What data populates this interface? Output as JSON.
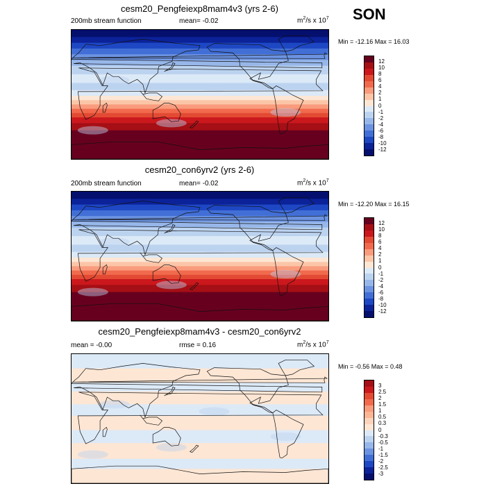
{
  "season": "SON",
  "panels": [
    {
      "title": "cesm20_Pengfeiexp8mam4v3 (yrs 2-6)",
      "left_label": "200mb stream function",
      "center_label": "mean=  -0.02",
      "units": "m",
      "units_rest": "/s x 10",
      "units_sup2": "2",
      "units_sup7": "7",
      "minmax": "Min = -12.16 Max =  16.03",
      "levels": [
        "12",
        "10",
        "8",
        "6",
        "4",
        "2",
        "1",
        "0",
        "-1",
        "-2",
        "-4",
        "-6",
        "-8",
        "-10",
        "-12"
      ],
      "colors": [
        "#67001f",
        "#a50f15",
        "#cb181d",
        "#e34a33",
        "#f16a4d",
        "#f99b7d",
        "#fcc5a8",
        "#fde6d4",
        "#dce9f7",
        "#bcd3f0",
        "#97b7ea",
        "#6c93e1",
        "#426fd6",
        "#1e47c4",
        "#0b2299",
        "#050f6e"
      ],
      "bands": [
        {
          "lat": 90,
          "color": "#050f6e"
        },
        {
          "lat": 80,
          "color": "#0b2299"
        },
        {
          "lat": 72,
          "color": "#1e47c4"
        },
        {
          "lat": 64,
          "color": "#426fd6"
        },
        {
          "lat": 56,
          "color": "#6c93e1"
        },
        {
          "lat": 48,
          "color": "#97b7ea"
        },
        {
          "lat": 40,
          "color": "#bcd3f0"
        },
        {
          "lat": 28,
          "color": "#dce9f7"
        },
        {
          "lat": 16,
          "color": "#bcd3f0"
        },
        {
          "lat": 6,
          "color": "#dce9f7"
        },
        {
          "lat": -2,
          "color": "#fde6d4"
        },
        {
          "lat": -8,
          "color": "#fcc5a8"
        },
        {
          "lat": -14,
          "color": "#f99b7d"
        },
        {
          "lat": -20,
          "color": "#f16a4d"
        },
        {
          "lat": -26,
          "color": "#e34a33"
        },
        {
          "lat": -32,
          "color": "#cb181d"
        },
        {
          "lat": -40,
          "color": "#a50f15"
        },
        {
          "lat": -50,
          "color": "#67001f"
        }
      ]
    },
    {
      "title": "cesm20_con6yrv2 (yrs 2-6)",
      "left_label": "200mb stream function",
      "center_label": "mean=  -0.02",
      "units": "m",
      "units_rest": "/s x 10",
      "units_sup2": "2",
      "units_sup7": "7",
      "minmax": "Min = -12.20 Max =  16.15",
      "levels": [
        "12",
        "10",
        "8",
        "6",
        "4",
        "2",
        "1",
        "0",
        "-1",
        "-2",
        "-4",
        "-6",
        "-8",
        "-10",
        "-12"
      ],
      "colors": [
        "#67001f",
        "#a50f15",
        "#cb181d",
        "#e34a33",
        "#f16a4d",
        "#f99b7d",
        "#fcc5a8",
        "#fde6d4",
        "#dce9f7",
        "#bcd3f0",
        "#97b7ea",
        "#6c93e1",
        "#426fd6",
        "#1e47c4",
        "#0b2299",
        "#050f6e"
      ],
      "bands": [
        {
          "lat": 90,
          "color": "#050f6e"
        },
        {
          "lat": 80,
          "color": "#0b2299"
        },
        {
          "lat": 72,
          "color": "#1e47c4"
        },
        {
          "lat": 64,
          "color": "#426fd6"
        },
        {
          "lat": 56,
          "color": "#6c93e1"
        },
        {
          "lat": 48,
          "color": "#97b7ea"
        },
        {
          "lat": 40,
          "color": "#bcd3f0"
        },
        {
          "lat": 28,
          "color": "#dce9f7"
        },
        {
          "lat": 16,
          "color": "#bcd3f0"
        },
        {
          "lat": 6,
          "color": "#dce9f7"
        },
        {
          "lat": -2,
          "color": "#fde6d4"
        },
        {
          "lat": -8,
          "color": "#fcc5a8"
        },
        {
          "lat": -14,
          "color": "#f99b7d"
        },
        {
          "lat": -20,
          "color": "#f16a4d"
        },
        {
          "lat": -26,
          "color": "#e34a33"
        },
        {
          "lat": -32,
          "color": "#cb181d"
        },
        {
          "lat": -40,
          "color": "#a50f15"
        },
        {
          "lat": -50,
          "color": "#67001f"
        }
      ]
    },
    {
      "title": "cesm20_Pengfeiexp8mam4v3 - cesm20_con6yrv2",
      "left_label": "mean =  -0.00",
      "center_label": "rmse =   0.16",
      "units": "m",
      "units_rest": "/s x 10",
      "units_sup2": "2",
      "units_sup7": "7",
      "minmax": "Min =  -0.56 Max =   0.48",
      "levels": [
        "3",
        "2.5",
        "2",
        "1.5",
        "1",
        "0.5",
        "0.3",
        "0",
        "-0.3",
        "-0.5",
        "-1",
        "-1.5",
        "-2",
        "-2.5",
        "-3"
      ],
      "colors": [
        "#a50f15",
        "#cb181d",
        "#e34a33",
        "#f16a4d",
        "#f99b7d",
        "#fcb595",
        "#fcd3bc",
        "#fde6d4",
        "#dce9f7",
        "#bcd3f0",
        "#97b7ea",
        "#6c93e1",
        "#426fd6",
        "#1e47c4",
        "#0b2299",
        "#050f6e"
      ],
      "bands": [
        {
          "lat": 90,
          "color": "#dce9f7"
        },
        {
          "lat": 70,
          "color": "#fde6d4"
        },
        {
          "lat": 50,
          "color": "#dce9f7"
        },
        {
          "lat": 38,
          "color": "#fde6d4"
        },
        {
          "lat": 20,
          "color": "#dce9f7"
        },
        {
          "lat": 4,
          "color": "#fde6d4"
        },
        {
          "lat": -16,
          "color": "#dce9f7"
        },
        {
          "lat": -34,
          "color": "#fde6d4"
        },
        {
          "lat": -56,
          "color": "#dce9f7"
        },
        {
          "lat": -70,
          "color": "#fde6d4"
        }
      ]
    }
  ]
}
